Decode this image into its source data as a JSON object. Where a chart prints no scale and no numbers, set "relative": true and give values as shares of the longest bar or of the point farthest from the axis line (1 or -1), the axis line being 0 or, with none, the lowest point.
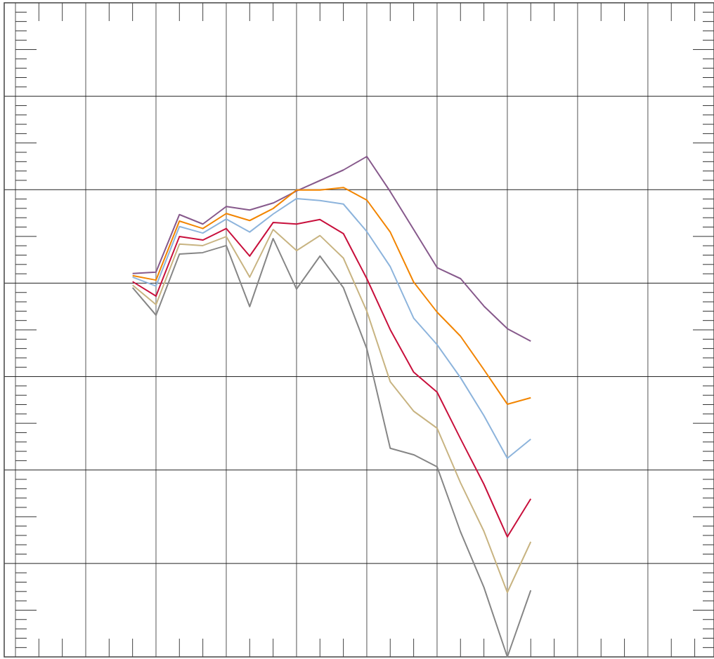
{
  "chart_data": {
    "type": "line",
    "relative": true,
    "grid": true,
    "categories": [
      null,
      null,
      null,
      null,
      null,
      null,
      null,
      null,
      null,
      null,
      null,
      null,
      null,
      null,
      null,
      null,
      null,
      null,
      null,
      null,
      null,
      null,
      null,
      null,
      null,
      null,
      null,
      null,
      null,
      null
    ],
    "series": [
      {
        "color": "#875a8c",
        "values": [
          null,
          null,
          null,
          null,
          null,
          0.766,
          0.769,
          0.884,
          0.865,
          0.9,
          0.893,
          0.907,
          0.931,
          0.952,
          0.973,
          1,
          0.93,
          0.854,
          0.778,
          0.756,
          0.701,
          0.656,
          0.631,
          null,
          null,
          null,
          null,
          null,
          null,
          null
        ]
      },
      {
        "color": "#f28500",
        "values": [
          null,
          null,
          null,
          null,
          null,
          0.762,
          0.753,
          0.871,
          0.856,
          0.886,
          0.872,
          0.896,
          0.933,
          0.933,
          0.938,
          0.913,
          0.849,
          0.749,
          0.689,
          0.641,
          0.574,
          0.505,
          0.518,
          null,
          null,
          null,
          null,
          null,
          null,
          null
        ]
      },
      {
        "color": "#8db4dc",
        "values": [
          null,
          null,
          null,
          null,
          null,
          0.759,
          0.741,
          0.86,
          0.847,
          0.875,
          0.849,
          0.885,
          0.916,
          0.912,
          0.905,
          0.85,
          0.78,
          0.677,
          0.624,
          0.558,
          0.482,
          0.397,
          0.435,
          null,
          null,
          null,
          null,
          null,
          null,
          null
        ]
      },
      {
        "color": "#c8103c",
        "values": [
          null,
          null,
          null,
          null,
          null,
          0.75,
          0.721,
          0.84,
          0.833,
          0.856,
          0.801,
          0.868,
          0.865,
          0.874,
          0.846,
          0.756,
          0.654,
          0.569,
          0.529,
          0.436,
          0.345,
          0.24,
          0.316,
          null,
          null,
          null,
          null,
          null,
          null,
          null
        ]
      },
      {
        "color": "#c8b482",
        "values": [
          null,
          null,
          null,
          null,
          null,
          0.743,
          0.704,
          0.825,
          0.822,
          0.84,
          0.759,
          0.854,
          0.812,
          0.842,
          0.797,
          0.691,
          0.55,
          0.491,
          0.457,
          0.348,
          0.251,
          0.129,
          0.23,
          null,
          null,
          null,
          null,
          null,
          null,
          null
        ]
      },
      {
        "color": "#868686",
        "values": [
          null,
          null,
          null,
          null,
          null,
          0.738,
          0.683,
          0.805,
          0.808,
          0.822,
          0.7,
          0.836,
          0.735,
          0.801,
          0.738,
          0.616,
          0.417,
          0.404,
          0.38,
          0.25,
          0.139,
          0,
          0.133,
          null,
          null,
          null,
          null,
          null,
          null,
          null
        ]
      }
    ]
  }
}
